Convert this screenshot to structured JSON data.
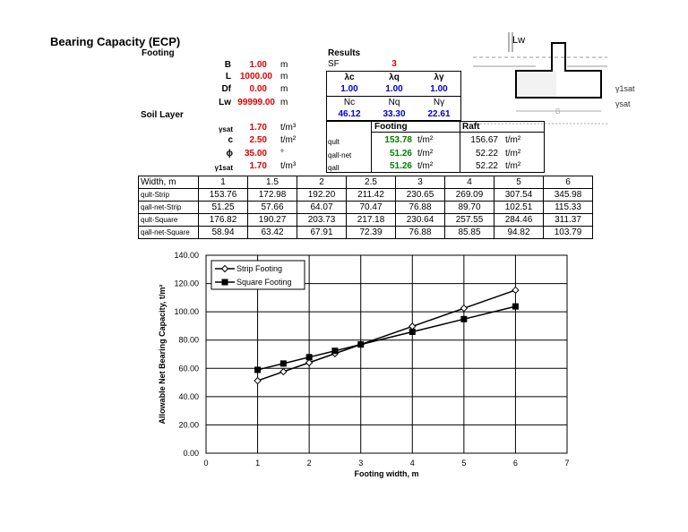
{
  "title": "Bearing Capacity (ECP)",
  "footing_label": "Footing",
  "soil_label": "Soil Layer",
  "results_label": "Results",
  "inputs": [
    {
      "sym": "B",
      "val": "1.00",
      "unit": "m"
    },
    {
      "sym": "L",
      "val": "1000.00",
      "unit": "m"
    },
    {
      "sym": "Df",
      "val": "0.00",
      "unit": "m"
    },
    {
      "sym": "Lw",
      "val": "99999.00",
      "unit": "m"
    }
  ],
  "soil": [
    {
      "sym": "γsat",
      "val": "1.70",
      "unit": "t/m³"
    },
    {
      "sym": "c",
      "val": "2.50",
      "unit": "t/m²"
    },
    {
      "sym": "ϕ",
      "val": "35.00",
      "unit": "°"
    },
    {
      "sym": "γ1sat",
      "val": "1.70",
      "unit": "t/m³"
    }
  ],
  "sf": {
    "label": "SF",
    "value": "3"
  },
  "lambda": {
    "labels": [
      "λc",
      "λq",
      "λγ"
    ],
    "values": [
      "1.00",
      "1.00",
      "1.00"
    ]
  },
  "n_factors": {
    "labels": [
      "Nc",
      "Nq",
      "Nγ"
    ],
    "values": [
      "46.12",
      "33.30",
      "22.61"
    ]
  },
  "results": {
    "footing_header": "Footing",
    "raft_header": "Raft",
    "rows": [
      {
        "label": "qult",
        "footing": "153.78",
        "raft": "156.67",
        "unit": "t/m²"
      },
      {
        "label": "qall-net",
        "footing": "51.26",
        "raft": "52.22",
        "unit": "t/m²"
      },
      {
        "label": "qall",
        "footing": "51.26",
        "raft": "52.22",
        "unit": "t/m²"
      }
    ]
  },
  "width_table": {
    "header_label": "Width, m",
    "widths": [
      "1",
      "1.5",
      "2",
      "2.5",
      "3",
      "4",
      "5",
      "6"
    ],
    "rows": [
      {
        "label": "qult-Strip",
        "values": [
          "153.76",
          "172.98",
          "192.20",
          "211.42",
          "230.65",
          "269.09",
          "307.54",
          "345.98"
        ]
      },
      {
        "label": "qall-net-Strip",
        "values": [
          "51.25",
          "57.66",
          "64.07",
          "70.47",
          "76.88",
          "89.70",
          "102.51",
          "115.33"
        ]
      },
      {
        "label": "qult-Square",
        "values": [
          "176.82",
          "190.27",
          "203.73",
          "217.18",
          "230.64",
          "257.55",
          "284.46",
          "311.37"
        ]
      },
      {
        "label": "qall-net-Square",
        "values": [
          "58.94",
          "63.42",
          "67.91",
          "72.39",
          "76.88",
          "85.85",
          "94.82",
          "103.79"
        ]
      }
    ]
  },
  "diagram": {
    "lw": "Lw",
    "g1sat": "γ1sat",
    "gsat": "γsat",
    "b": "B"
  },
  "chart_data": {
    "type": "line",
    "xlabel": "Footing width, m",
    "ylabel": "Allowable Net Bearing Capacity, t/m²",
    "xlim": [
      0,
      7
    ],
    "ylim": [
      0,
      140
    ],
    "xticks": [
      "0",
      "1",
      "2",
      "3",
      "4",
      "5",
      "6",
      "7"
    ],
    "yticks": [
      "0.00",
      "20.00",
      "40.00",
      "60.00",
      "80.00",
      "100.00",
      "120.00",
      "140.00"
    ],
    "grid": true,
    "legend": "top-left",
    "x": [
      1,
      1.5,
      2,
      2.5,
      3,
      4,
      5,
      6
    ],
    "series": [
      {
        "name": "Strip Footing",
        "marker": "open-diamond",
        "values": [
          51.25,
          57.66,
          64.07,
          70.47,
          76.88,
          89.7,
          102.51,
          115.33
        ]
      },
      {
        "name": "Square Footing",
        "marker": "filled-square",
        "values": [
          58.94,
          63.42,
          67.91,
          72.39,
          76.88,
          85.85,
          94.82,
          103.79
        ]
      }
    ]
  }
}
